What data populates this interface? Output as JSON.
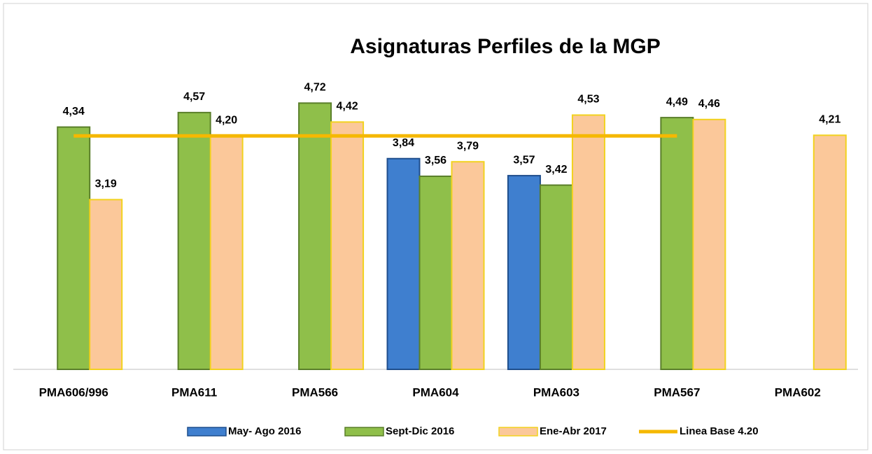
{
  "chart_data": {
    "type": "bar",
    "title": "Asignaturas Perfiles de la MGP",
    "categories": [
      "PMA606/996",
      "PMA611",
      "PMA566",
      "PMA604",
      "PMA603",
      "PMA567",
      "PMA602"
    ],
    "ylim": [
      0.5,
      5.5
    ],
    "legend": "bottom",
    "series": [
      {
        "name": "May- Ago 2016",
        "type": "bar",
        "color": "#3f7fcf",
        "edgecolor": "#1f4e8c",
        "values": [
          null,
          null,
          null,
          3.84,
          3.57,
          null,
          null
        ],
        "value_labels": [
          null,
          null,
          null,
          "3,84",
          "3,57",
          null,
          null
        ]
      },
      {
        "name": "Sept-Dic 2016",
        "type": "bar",
        "color": "#8fbf4a",
        "edgecolor": "#5a7f2a",
        "values": [
          4.34,
          4.57,
          4.72,
          3.56,
          3.42,
          4.49,
          null
        ],
        "value_labels": [
          "4,34",
          "4,57",
          "4,72",
          "3,56",
          "3,42",
          "4,49",
          null
        ]
      },
      {
        "name": "Ene-Abr 2017",
        "type": "bar",
        "color": "#fbc89a",
        "edgecolor": "#f2d21e",
        "values": [
          3.19,
          4.2,
          4.42,
          3.79,
          4.53,
          4.46,
          4.21
        ],
        "value_labels": [
          "3,19",
          "4,20",
          "4,42",
          "3,79",
          "4,53",
          "4,46",
          "4,21"
        ]
      },
      {
        "name": "Linea Base 4.20",
        "type": "line",
        "color": "#f5b800",
        "values": [
          4.2,
          4.2,
          4.2,
          4.2,
          4.2,
          4.2,
          null
        ]
      }
    ]
  }
}
